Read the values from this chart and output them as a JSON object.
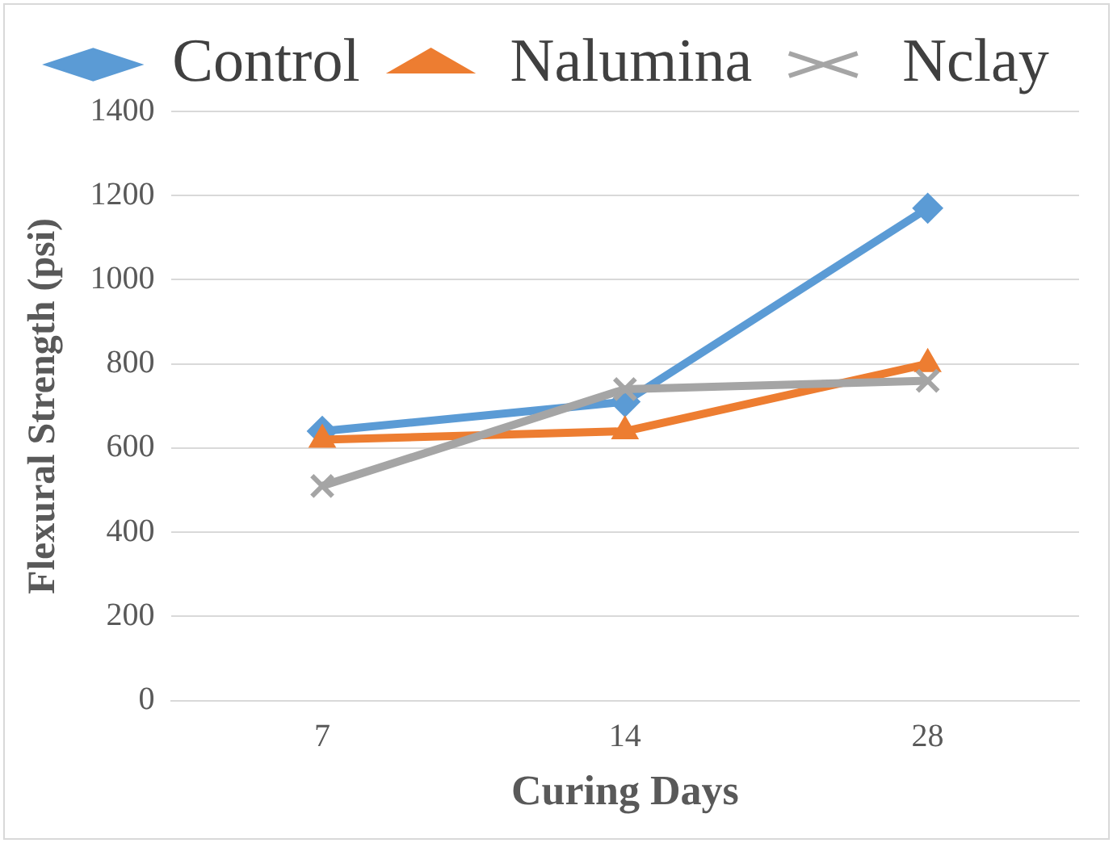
{
  "chart_data": {
    "type": "line",
    "xlabel": "Curing Days",
    "ylabel": "Flexural Strength (psi)",
    "categories": [
      "7",
      "14",
      "28"
    ],
    "series": [
      {
        "name": "Control",
        "color": "#5b9bd5",
        "marker": "diamond",
        "values": [
          640,
          710,
          1170
        ]
      },
      {
        "name": "Nalumina",
        "color": "#ed7d31",
        "marker": "triangle",
        "values": [
          620,
          640,
          800
        ]
      },
      {
        "name": "Nclay",
        "color": "#a5a5a5",
        "marker": "cross",
        "values": [
          510,
          740,
          760
        ]
      }
    ],
    "ylim": [
      0,
      1400
    ],
    "yticks": [
      0,
      200,
      400,
      600,
      800,
      1000,
      1200,
      1400
    ],
    "grid": "y",
    "legend": "top"
  }
}
